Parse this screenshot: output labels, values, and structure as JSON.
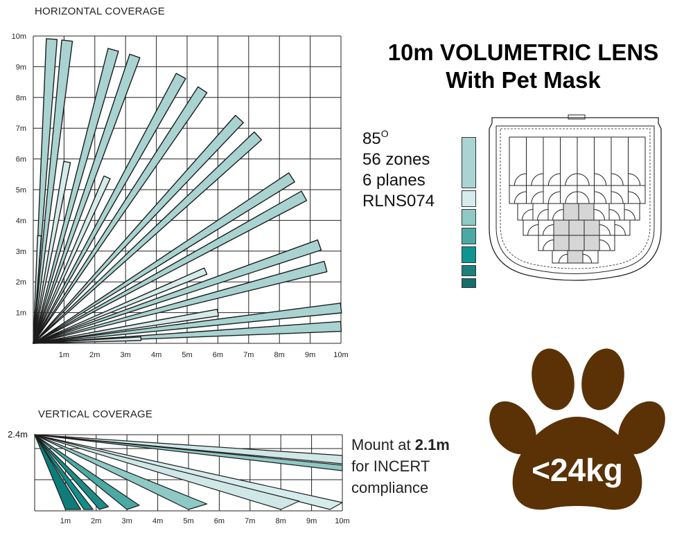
{
  "horizontal": {
    "heading": "HORIZONTAL COVERAGE",
    "x_ticks": [
      "1m",
      "2m",
      "3m",
      "4m",
      "5m",
      "6m",
      "7m",
      "8m",
      "9m",
      "10m"
    ],
    "y_ticks": [
      "1m",
      "2m",
      "3m",
      "4m",
      "5m",
      "6m",
      "7m",
      "8m",
      "9m",
      "10m"
    ]
  },
  "title": {
    "line1": "10m VOLUMETRIC LENS",
    "line2": "With Pet Mask"
  },
  "specs": {
    "angle": "85",
    "angle_unit": "O",
    "zones": "56 zones",
    "planes": "6 planes",
    "model": "RLNS074"
  },
  "legend_swatches": [
    "#a9d4d2",
    "#d6ecec",
    "#8ec9c5",
    "#4aa9a3",
    "#0f9491",
    "#1c7f7c",
    "#146e6b"
  ],
  "vertical": {
    "heading": "VERTICAL COVERAGE",
    "mount_height_label": "2.4m",
    "x_ticks": [
      "1m",
      "2m",
      "3m",
      "4m",
      "5m",
      "6m",
      "7m",
      "8m",
      "9m",
      "10m"
    ]
  },
  "mount_note": {
    "prefix": "Mount at ",
    "height": "2.1m",
    "line2": "for INCERT",
    "line3": "compliance"
  },
  "pet": {
    "label": "<24kg",
    "color": "#5a3206"
  },
  "colors": {
    "beam_main": "#a8d3d0",
    "beam_pale": "#d4ebea",
    "beam_dark": "#0d8f8b",
    "grid": "#222222"
  }
}
